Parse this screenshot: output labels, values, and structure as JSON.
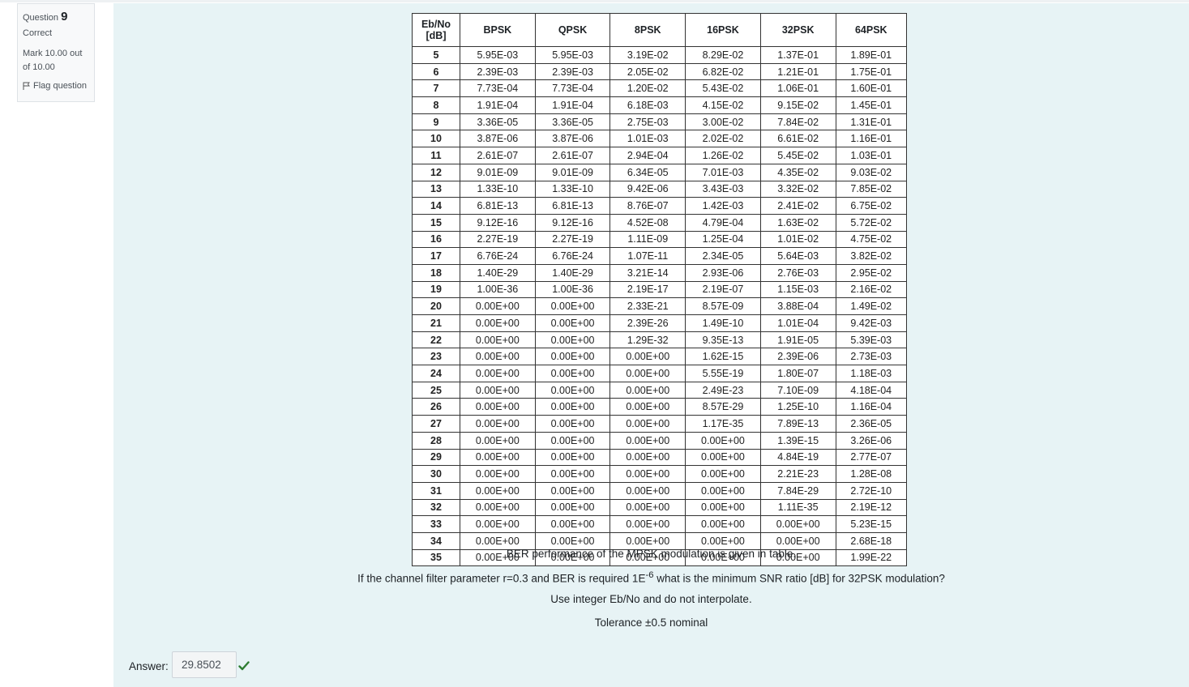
{
  "question_info": {
    "question_prefix": "Question",
    "question_number": "9",
    "state": "Correct",
    "grade": "Mark 10.00 out of 10.00",
    "flag_label": "Flag question"
  },
  "table": {
    "headers": [
      "Eb/No [dB]",
      "BPSK",
      "QPSK",
      "8PSK",
      "16PSK",
      "32PSK",
      "64PSK"
    ],
    "rows": [
      [
        "5",
        "5.95E-03",
        "5.95E-03",
        "3.19E-02",
        "8.29E-02",
        "1.37E-01",
        "1.89E-01"
      ],
      [
        "6",
        "2.39E-03",
        "2.39E-03",
        "2.05E-02",
        "6.82E-02",
        "1.21E-01",
        "1.75E-01"
      ],
      [
        "7",
        "7.73E-04",
        "7.73E-04",
        "1.20E-02",
        "5.43E-02",
        "1.06E-01",
        "1.60E-01"
      ],
      [
        "8",
        "1.91E-04",
        "1.91E-04",
        "6.18E-03",
        "4.15E-02",
        "9.15E-02",
        "1.45E-01"
      ],
      [
        "9",
        "3.36E-05",
        "3.36E-05",
        "2.75E-03",
        "3.00E-02",
        "7.84E-02",
        "1.31E-01"
      ],
      [
        "10",
        "3.87E-06",
        "3.87E-06",
        "1.01E-03",
        "2.02E-02",
        "6.61E-02",
        "1.16E-01"
      ],
      [
        "11",
        "2.61E-07",
        "2.61E-07",
        "2.94E-04",
        "1.26E-02",
        "5.45E-02",
        "1.03E-01"
      ],
      [
        "12",
        "9.01E-09",
        "9.01E-09",
        "6.34E-05",
        "7.01E-03",
        "4.35E-02",
        "9.03E-02"
      ],
      [
        "13",
        "1.33E-10",
        "1.33E-10",
        "9.42E-06",
        "3.43E-03",
        "3.32E-02",
        "7.85E-02"
      ],
      [
        "14",
        "6.81E-13",
        "6.81E-13",
        "8.76E-07",
        "1.42E-03",
        "2.41E-02",
        "6.75E-02"
      ],
      [
        "15",
        "9.12E-16",
        "9.12E-16",
        "4.52E-08",
        "4.79E-04",
        "1.63E-02",
        "5.72E-02"
      ],
      [
        "16",
        "2.27E-19",
        "2.27E-19",
        "1.11E-09",
        "1.25E-04",
        "1.01E-02",
        "4.75E-02"
      ],
      [
        "17",
        "6.76E-24",
        "6.76E-24",
        "1.07E-11",
        "2.34E-05",
        "5.64E-03",
        "3.82E-02"
      ],
      [
        "18",
        "1.40E-29",
        "1.40E-29",
        "3.21E-14",
        "2.93E-06",
        "2.76E-03",
        "2.95E-02"
      ],
      [
        "19",
        "1.00E-36",
        "1.00E-36",
        "2.19E-17",
        "2.19E-07",
        "1.15E-03",
        "2.16E-02"
      ],
      [
        "20",
        "0.00E+00",
        "0.00E+00",
        "2.33E-21",
        "8.57E-09",
        "3.88E-04",
        "1.49E-02"
      ],
      [
        "21",
        "0.00E+00",
        "0.00E+00",
        "2.39E-26",
        "1.49E-10",
        "1.01E-04",
        "9.42E-03"
      ],
      [
        "22",
        "0.00E+00",
        "0.00E+00",
        "1.29E-32",
        "9.35E-13",
        "1.91E-05",
        "5.39E-03"
      ],
      [
        "23",
        "0.00E+00",
        "0.00E+00",
        "0.00E+00",
        "1.62E-15",
        "2.39E-06",
        "2.73E-03"
      ],
      [
        "24",
        "0.00E+00",
        "0.00E+00",
        "0.00E+00",
        "5.55E-19",
        "1.80E-07",
        "1.18E-03"
      ],
      [
        "25",
        "0.00E+00",
        "0.00E+00",
        "0.00E+00",
        "2.49E-23",
        "7.10E-09",
        "4.18E-04"
      ],
      [
        "26",
        "0.00E+00",
        "0.00E+00",
        "0.00E+00",
        "8.57E-29",
        "1.25E-10",
        "1.16E-04"
      ],
      [
        "27",
        "0.00E+00",
        "0.00E+00",
        "0.00E+00",
        "1.17E-35",
        "7.89E-13",
        "2.36E-05"
      ],
      [
        "28",
        "0.00E+00",
        "0.00E+00",
        "0.00E+00",
        "0.00E+00",
        "1.39E-15",
        "3.26E-06"
      ],
      [
        "29",
        "0.00E+00",
        "0.00E+00",
        "0.00E+00",
        "0.00E+00",
        "4.84E-19",
        "2.77E-07"
      ],
      [
        "30",
        "0.00E+00",
        "0.00E+00",
        "0.00E+00",
        "0.00E+00",
        "2.21E-23",
        "1.28E-08"
      ],
      [
        "31",
        "0.00E+00",
        "0.00E+00",
        "0.00E+00",
        "0.00E+00",
        "7.84E-29",
        "2.72E-10"
      ],
      [
        "32",
        "0.00E+00",
        "0.00E+00",
        "0.00E+00",
        "0.00E+00",
        "1.11E-35",
        "2.19E-12"
      ],
      [
        "33",
        "0.00E+00",
        "0.00E+00",
        "0.00E+00",
        "0.00E+00",
        "0.00E+00",
        "5.23E-15"
      ],
      [
        "34",
        "0.00E+00",
        "0.00E+00",
        "0.00E+00",
        "0.00E+00",
        "0.00E+00",
        "2.68E-18"
      ],
      [
        "35",
        "0.00E+00",
        "0.00E+00",
        "0.00E+00",
        "0.00E+00",
        "0.00E+00",
        "1.99E-22"
      ]
    ]
  },
  "question_text": {
    "line1": "BER performance of the MPSK modulation is given in table.",
    "line2_before": "If the channel filter parameter r=0.3 and BER is required 1E",
    "line2_sup": "-6",
    "line2_after": " what is the minimum SNR ratio [dB] for 32PSK modulation?",
    "line3": "Use integer Eb/No and do not interpolate.",
    "line4": "Tolerance ±0.5 nominal"
  },
  "answer": {
    "label": "Answer:",
    "value": "29.8502",
    "status_icon": "check-icon",
    "status_color": "#2e7d32"
  }
}
